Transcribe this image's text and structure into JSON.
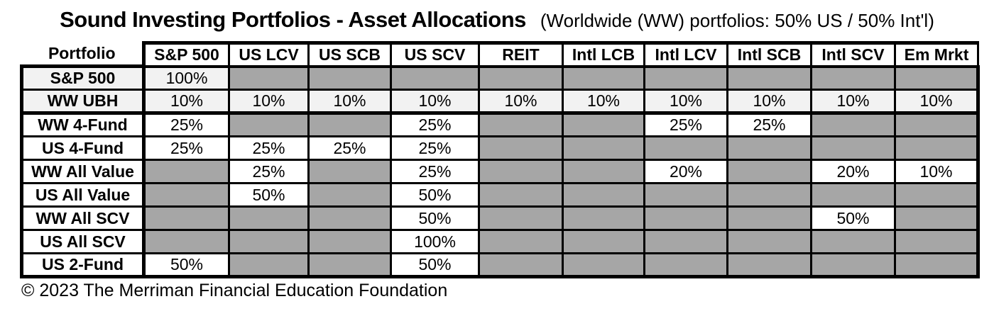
{
  "title": "Sound Investing Portfolios - Asset Allocations",
  "subtitle": "(Worldwide (WW) portfolios: 50% US / 50% Int'l)",
  "footer": "© 2023 The Merriman Financial Education Foundation",
  "colors": {
    "empty_cell": "#a6a6a6",
    "highlight_fill": "#f2f2f2",
    "filled_cell": "#ffffff",
    "border": "#000000"
  },
  "chart_data": {
    "type": "table",
    "title": "Sound Investing Portfolios - Asset Allocations",
    "subtitle": "(Worldwide (WW) portfolios: 50% US / 50% Int'l)",
    "columns": [
      "Portfolio",
      "S&P 500",
      "US LCV",
      "US SCB",
      "US SCV",
      "REIT",
      "Intl LCB",
      "Intl LCV",
      "Intl SCB",
      "Intl SCV",
      "Em Mrkt"
    ],
    "rows": [
      {
        "name": "S&P 500",
        "highlight": true,
        "thick_border_below": false,
        "values": [
          "100%",
          "",
          "",
          "",
          "",
          "",
          "",
          "",
          "",
          ""
        ]
      },
      {
        "name": "WW UBH",
        "highlight": true,
        "thick_border_below": true,
        "values": [
          "10%",
          "10%",
          "10%",
          "10%",
          "10%",
          "10%",
          "10%",
          "10%",
          "10%",
          "10%"
        ]
      },
      {
        "name": "WW 4-Fund",
        "highlight": false,
        "thick_border_below": false,
        "values": [
          "25%",
          "",
          "",
          "25%",
          "",
          "",
          "25%",
          "25%",
          "",
          ""
        ]
      },
      {
        "name": "US 4-Fund",
        "highlight": false,
        "thick_border_below": false,
        "values": [
          "25%",
          "25%",
          "25%",
          "25%",
          "",
          "",
          "",
          "",
          "",
          ""
        ]
      },
      {
        "name": "WW All Value",
        "highlight": false,
        "thick_border_below": false,
        "values": [
          "",
          "25%",
          "",
          "25%",
          "",
          "",
          "20%",
          "",
          "20%",
          "10%"
        ]
      },
      {
        "name": "US All Value",
        "highlight": false,
        "thick_border_below": false,
        "values": [
          "",
          "50%",
          "",
          "50%",
          "",
          "",
          "",
          "",
          "",
          ""
        ]
      },
      {
        "name": "WW All SCV",
        "highlight": false,
        "thick_border_below": false,
        "values": [
          "",
          "",
          "",
          "50%",
          "",
          "",
          "",
          "",
          "50%",
          ""
        ]
      },
      {
        "name": "US All SCV",
        "highlight": false,
        "thick_border_below": false,
        "values": [
          "",
          "",
          "",
          "100%",
          "",
          "",
          "",
          "",
          "",
          ""
        ]
      },
      {
        "name": "US 2-Fund",
        "highlight": false,
        "thick_border_below": false,
        "values": [
          "50%",
          "",
          "",
          "50%",
          "",
          "",
          "",
          "",
          "",
          ""
        ]
      }
    ]
  }
}
